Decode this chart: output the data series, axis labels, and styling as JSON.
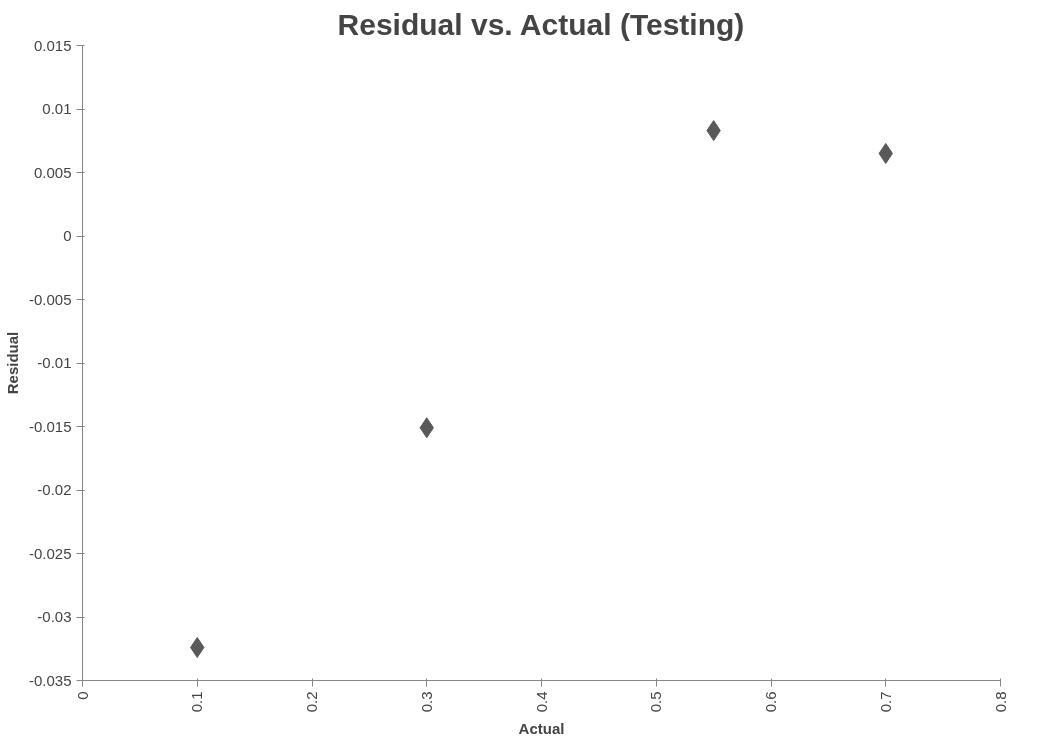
{
  "chart_data": {
    "type": "scatter",
    "title": "Residual vs. Actual (Testing)",
    "xlabel": "Actual",
    "ylabel": "Residual",
    "series": [
      {
        "color": "#595959",
        "x": [
          0.1,
          0.3,
          0.55,
          0.7
        ],
        "values": [
          -0.0324,
          -0.0151,
          0.0083,
          0.0065
        ]
      }
    ],
    "xlim": [
      0,
      0.8
    ],
    "xticks": [
      0,
      0.1,
      0.2,
      0.3,
      0.4,
      0.5,
      0.6,
      0.7,
      0.8
    ],
    "ylim": [
      -0.035,
      0.015
    ],
    "yticks": [
      -0.035,
      -0.03,
      -0.025,
      -0.02,
      -0.015,
      -0.01,
      -0.005,
      0,
      0.005,
      0.01,
      0.015
    ],
    "grid": false,
    "marker": "diamond"
  }
}
